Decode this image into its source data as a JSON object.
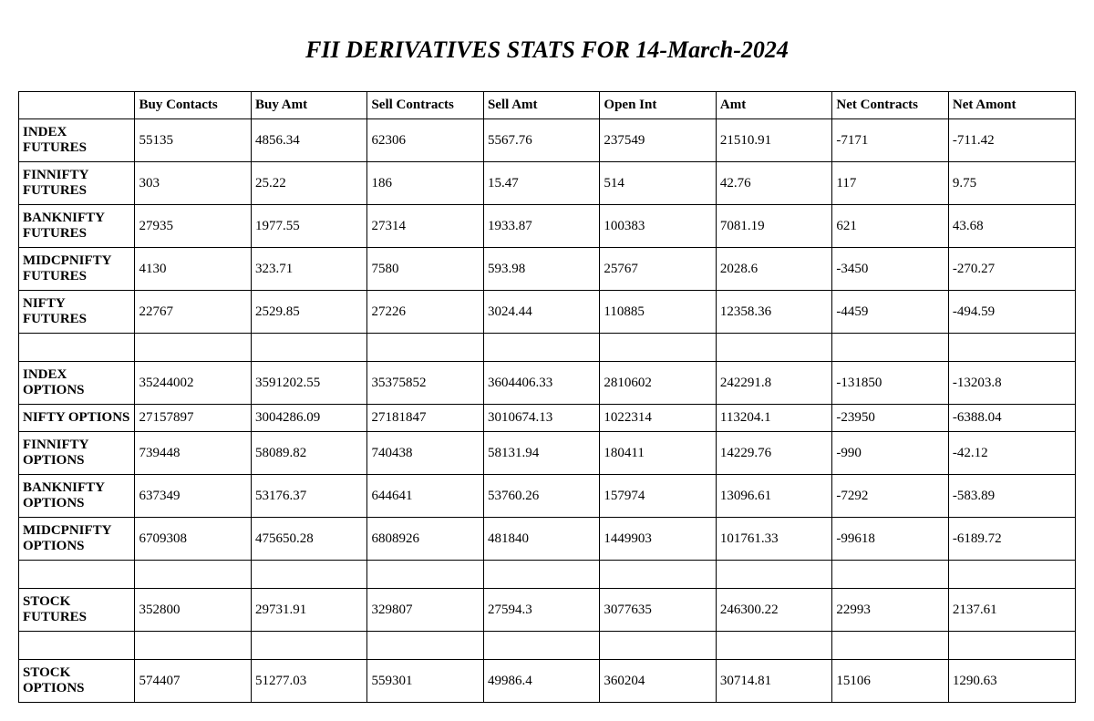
{
  "title": "FII DERIVATIVES STATS FOR 14-March-2024",
  "columns": [
    "",
    "Buy Contacts",
    "Buy Amt",
    "Sell Contracts",
    "Sell Amt",
    "Open Int",
    "Amt",
    "Net Contracts",
    "Net Amont"
  ],
  "rows": [
    {
      "label": "INDEX FUTURES",
      "cells": [
        "55135",
        "4856.34",
        "62306",
        "5567.76",
        "237549",
        "21510.91",
        "-7171",
        "-711.42"
      ]
    },
    {
      "label": "FINNIFTY FUTURES",
      "cells": [
        "303",
        "25.22",
        "186",
        "15.47",
        "514",
        "42.76",
        "117",
        "9.75"
      ]
    },
    {
      "label": "BANKNIFTY FUTURES",
      "cells": [
        "27935",
        "1977.55",
        "27314",
        "1933.87",
        "100383",
        "7081.19",
        "621",
        "43.68"
      ]
    },
    {
      "label": "MIDCPNIFTY FUTURES",
      "cells": [
        "4130",
        "323.71",
        "7580",
        "593.98",
        "25767",
        "2028.6",
        "-3450",
        "-270.27"
      ]
    },
    {
      "label": "NIFTY FUTURES",
      "cells": [
        "22767",
        "2529.85",
        "27226",
        "3024.44",
        "110885",
        "12358.36",
        "-4459",
        "-494.59"
      ]
    },
    {
      "spacer": true
    },
    {
      "label": "INDEX OPTIONS",
      "cells": [
        "35244002",
        "3591202.55",
        "35375852",
        "3604406.33",
        "2810602",
        "242291.8",
        "-131850",
        "-13203.8"
      ]
    },
    {
      "label": "NIFTY OPTIONS",
      "cells": [
        "27157897",
        "3004286.09",
        "27181847",
        "3010674.13",
        "1022314",
        "113204.1",
        "-23950",
        "-6388.04"
      ]
    },
    {
      "label": "FINNIFTY OPTIONS",
      "cells": [
        "739448",
        "58089.82",
        "740438",
        "58131.94",
        "180411",
        "14229.76",
        "-990",
        "-42.12"
      ]
    },
    {
      "label": "BANKNIFTY OPTIONS",
      "cells": [
        "637349",
        "53176.37",
        "644641",
        "53760.26",
        "157974",
        "13096.61",
        "-7292",
        "-583.89"
      ]
    },
    {
      "label": "MIDCPNIFTY OPTIONS",
      "cells": [
        "6709308",
        "475650.28",
        "6808926",
        "481840",
        "1449903",
        "101761.33",
        "-99618",
        "-6189.72"
      ]
    },
    {
      "spacer": true
    },
    {
      "label": "STOCK FUTURES",
      "cells": [
        "352800",
        "29731.91",
        "329807",
        "27594.3",
        "3077635",
        "246300.22",
        "22993",
        "2137.61"
      ]
    },
    {
      "spacer": true
    },
    {
      "label": "STOCK OPTIONS",
      "cells": [
        "574407",
        "51277.03",
        "559301",
        "49986.4",
        "360204",
        "30714.81",
        "15106",
        "1290.63"
      ]
    }
  ],
  "style": {
    "background_color": "#ffffff",
    "border_color": "#000000",
    "text_color": "#000000",
    "title_fontsize": 26,
    "cell_fontsize": 15,
    "font_family": "Georgia, 'Times New Roman', serif"
  }
}
